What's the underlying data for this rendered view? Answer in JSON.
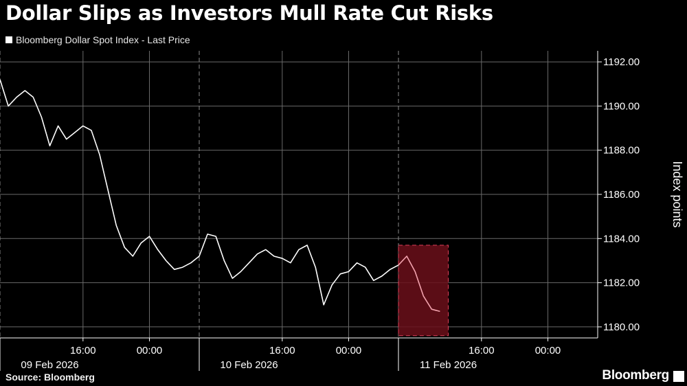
{
  "title": "Dollar Slips as Investors Mull Rate Cut Risks",
  "legend_label": "Bloomberg Dollar Spot Index - Last Price",
  "source": "Source: Bloomberg",
  "brand": "Bloomberg",
  "colors": {
    "background": "#000000",
    "line": "#ffffff",
    "highlight_fill": "#6b0f1a",
    "highlight_border": "#e0405a",
    "highlight_line": "#f3a3ae",
    "grid": "#6a6a6a"
  },
  "chart_data": {
    "type": "line",
    "series": [
      {
        "name": "Bloomberg Dollar Spot Index - Last Price",
        "x": [
          "2026-02-09 06:00",
          "2026-02-09 07:00",
          "2026-02-09 08:00",
          "2026-02-09 09:00",
          "2026-02-09 10:00",
          "2026-02-09 11:00",
          "2026-02-09 12:00",
          "2026-02-09 13:00",
          "2026-02-09 14:00",
          "2026-02-09 15:00",
          "2026-02-09 16:00",
          "2026-02-09 17:00",
          "2026-02-09 18:00",
          "2026-02-09 19:00",
          "2026-02-09 20:00",
          "2026-02-09 21:00",
          "2026-02-09 22:00",
          "2026-02-09 23:00",
          "2026-02-10 00:00",
          "2026-02-10 01:00",
          "2026-02-10 02:00",
          "2026-02-10 03:00",
          "2026-02-10 04:00",
          "2026-02-10 05:00",
          "2026-02-10 06:00",
          "2026-02-10 07:00",
          "2026-02-10 08:00",
          "2026-02-10 09:00",
          "2026-02-10 10:00",
          "2026-02-10 11:00",
          "2026-02-10 12:00",
          "2026-02-10 13:00",
          "2026-02-10 14:00",
          "2026-02-10 15:00",
          "2026-02-10 16:00",
          "2026-02-10 17:00",
          "2026-02-10 18:00",
          "2026-02-10 19:00",
          "2026-02-10 20:00",
          "2026-02-10 21:00",
          "2026-02-10 22:00",
          "2026-02-10 23:00",
          "2026-02-11 00:00",
          "2026-02-11 01:00",
          "2026-02-11 02:00",
          "2026-02-11 03:00",
          "2026-02-11 04:00",
          "2026-02-11 05:00",
          "2026-02-11 06:00",
          "2026-02-11 07:00",
          "2026-02-11 08:00",
          "2026-02-11 09:00",
          "2026-02-11 10:00",
          "2026-02-11 11:00"
        ],
        "values": [
          1191.2,
          1190.0,
          1190.4,
          1190.7,
          1190.4,
          1189.5,
          1188.2,
          1189.1,
          1188.5,
          1188.8,
          1189.1,
          1188.9,
          1187.8,
          1186.2,
          1184.6,
          1183.6,
          1183.2,
          1183.8,
          1184.1,
          1183.5,
          1183.0,
          1182.6,
          1182.7,
          1182.9,
          1183.2,
          1184.2,
          1184.1,
          1183.0,
          1182.2,
          1182.5,
          1182.9,
          1183.3,
          1183.5,
          1183.2,
          1183.1,
          1182.9,
          1183.5,
          1183.7,
          1182.7,
          1181.0,
          1181.9,
          1182.4,
          1182.5,
          1182.9,
          1182.7,
          1182.1,
          1182.3,
          1182.6,
          1182.8,
          1183.2,
          1182.5,
          1181.4,
          1180.8,
          1180.7
        ]
      }
    ],
    "highlight": {
      "x_start": "2026-02-11 06:00",
      "x_end": "2026-02-11 12:00",
      "y_start": 1179.6,
      "y_end": 1183.7
    },
    "x_tick_labels": [
      {
        "x": "2026-02-09 16:00",
        "label": "16:00"
      },
      {
        "x": "2026-02-10 00:00",
        "label": "00:00"
      },
      {
        "x": "2026-02-10 16:00",
        "label": "16:00"
      },
      {
        "x": "2026-02-11 00:00",
        "label": "00:00"
      },
      {
        "x": "2026-02-11 16:00",
        "label": "16:00"
      },
      {
        "x": "2026-02-12 00:00",
        "label": "00:00"
      }
    ],
    "day_labels": [
      {
        "x": "2026-02-09 12:00",
        "label": "09 Feb 2026"
      },
      {
        "x": "2026-02-10 12:00",
        "label": "10 Feb 2026"
      },
      {
        "x": "2026-02-11 12:00",
        "label": "11 Feb 2026"
      }
    ],
    "day_separators": [
      "2026-02-09 06:00",
      "2026-02-10 06:00",
      "2026-02-11 06:00"
    ],
    "xlim": [
      "2026-02-09 06:00",
      "2026-02-12 06:00"
    ],
    "ylabel": "Index points",
    "ylim": [
      1179.5,
      1192.5
    ],
    "y_ticks": [
      1180,
      1182,
      1184,
      1186,
      1188,
      1190,
      1192
    ],
    "y_tick_labels": [
      "1180.00",
      "1182.00",
      "1184.00",
      "1186.00",
      "1188.00",
      "1190.00",
      "1192.00"
    ],
    "grid": true,
    "legend_position": "top-left"
  }
}
